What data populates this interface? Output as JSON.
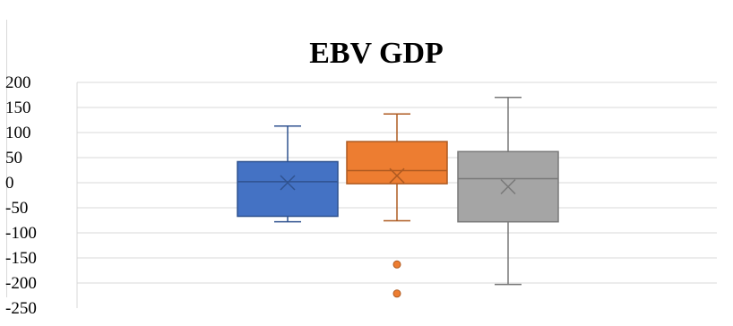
{
  "chart_data": {
    "type": "box",
    "title": "EBV GDP",
    "xlabel": "",
    "ylabel": "",
    "ylim": [
      -250,
      200
    ],
    "yticks": [
      200,
      150,
      100,
      50,
      0,
      -50,
      -100,
      -150,
      -200,
      -250
    ],
    "grid": true,
    "legend": "none",
    "series": [
      {
        "color": "#4472c4",
        "stroke": "#2f528f",
        "whisker_low": -78,
        "q1": -67,
        "median": 2,
        "q3": 42,
        "whisker_high": 113,
        "mean": 0,
        "outliers": []
      },
      {
        "color": "#ed7d31",
        "stroke": "#ae5a21",
        "whisker_low": -76,
        "q1": -2,
        "median": 24,
        "q3": 82,
        "whisker_high": 137,
        "mean": 14,
        "outliers": [
          -163,
          -221
        ]
      },
      {
        "color": "#a5a5a5",
        "stroke": "#787878",
        "whisker_low": -203,
        "q1": -78,
        "median": 8,
        "q3": 62,
        "whisker_high": 170,
        "mean": -8,
        "outliers": []
      }
    ]
  }
}
